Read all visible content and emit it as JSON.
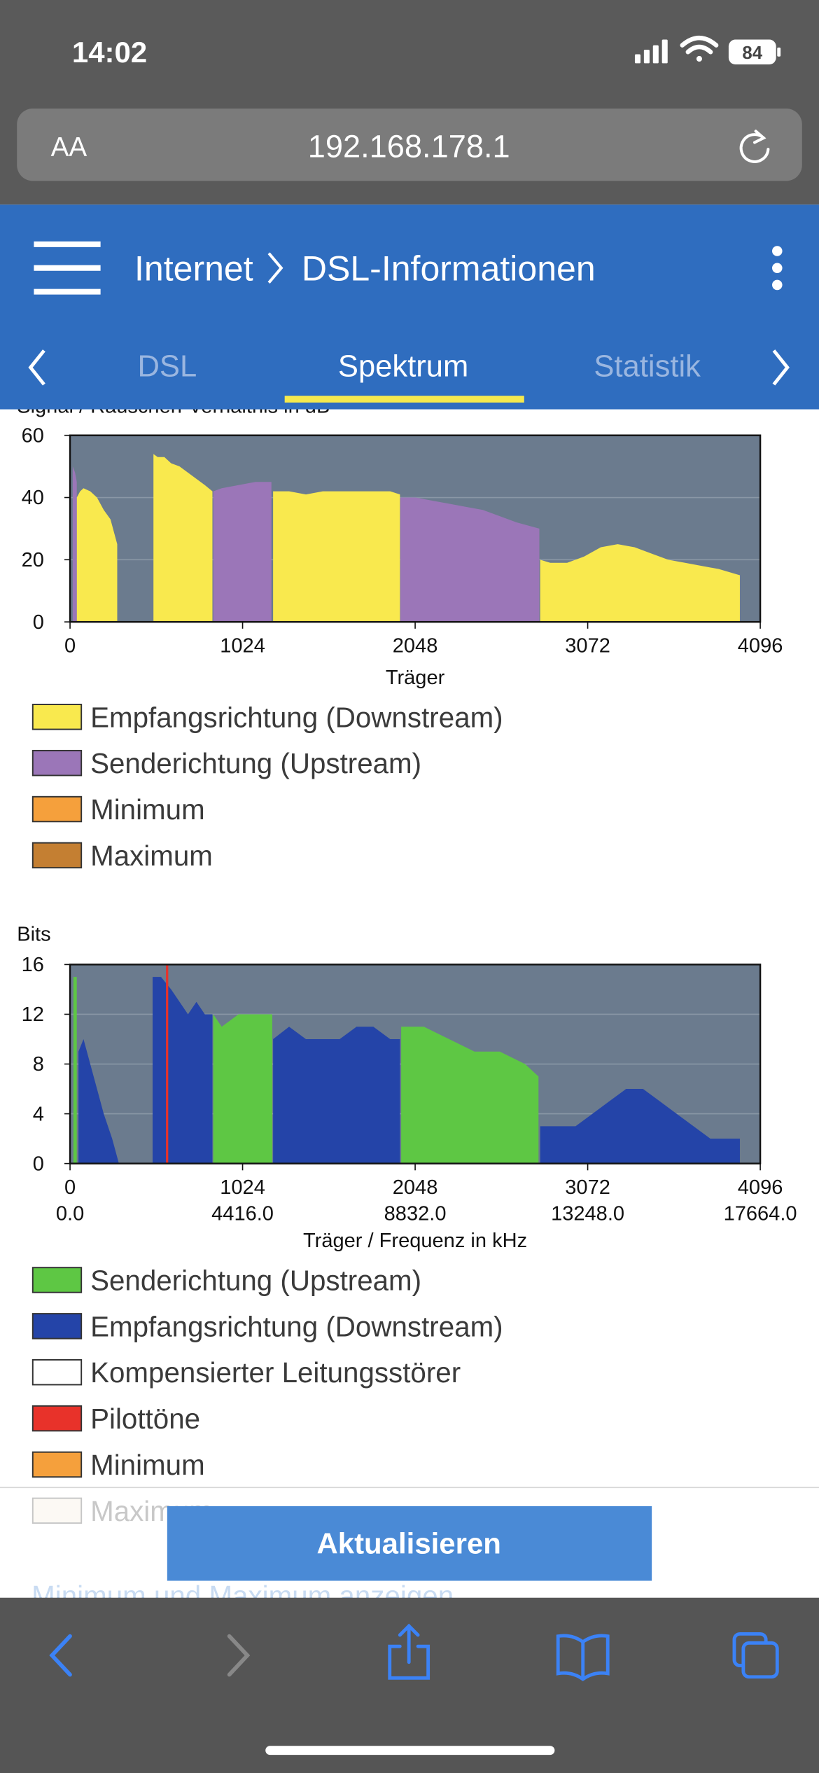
{
  "status_bar": {
    "time": "14:02",
    "battery": "84"
  },
  "browser": {
    "text_size": "AA",
    "url": "192.168.178.1"
  },
  "header": {
    "breadcrumb": [
      "Internet",
      "DSL-Informationen"
    ]
  },
  "tabs": {
    "items": [
      "DSL",
      "Spektrum",
      "Statistik"
    ],
    "active": 1
  },
  "button": "Aktualisieren",
  "link": "Minimum und Maximum anzeigen",
  "chart_data": [
    {
      "type": "area",
      "y_label": "Signal / Rauschen-Verhältnis in dB",
      "x_label": "Träger",
      "xlim": [
        0,
        4096
      ],
      "xticks": [
        0,
        1024,
        2048,
        3072,
        4096
      ],
      "ylim": [
        0,
        60
      ],
      "yticks": [
        0,
        20,
        40,
        60
      ],
      "grid": true,
      "series": [
        {
          "name": "Empfangsrichtung (Downstream)",
          "color": "#f9e94e",
          "x": [
            40,
            60,
            80,
            120,
            160,
            200,
            240,
            280,
            null,
            495,
            520,
            560,
            600,
            650,
            700,
            750,
            800,
            845,
            null,
            1205,
            1300,
            1400,
            1500,
            1600,
            1700,
            1800,
            1900,
            1958,
            null,
            2790,
            2850,
            2950,
            3050,
            3150,
            3250,
            3350,
            3450,
            3550,
            3650,
            3750,
            3850,
            3975
          ],
          "values": [
            40,
            42,
            43,
            42,
            40,
            36,
            33,
            25,
            null,
            54,
            53,
            53,
            51,
            50,
            48,
            46,
            44,
            42,
            null,
            42,
            42,
            41,
            42,
            42,
            42,
            42,
            42,
            41,
            null,
            20,
            19,
            19,
            21,
            24,
            25,
            24,
            22,
            20,
            19,
            18,
            17,
            15
          ]
        },
        {
          "name": "Senderichtung (Upstream)",
          "color": "#9b76b8",
          "x": [
            16,
            30,
            40,
            null,
            850,
            900,
            1000,
            1100,
            1195,
            null,
            1960,
            2050,
            2150,
            2250,
            2350,
            2450,
            2550,
            2650,
            2785
          ],
          "values": [
            50,
            48,
            45,
            null,
            42,
            43,
            44,
            45,
            45,
            null,
            40,
            40,
            39,
            38,
            37,
            36,
            34,
            32,
            30
          ]
        },
        {
          "name": "Minimum",
          "color": "#f5a03c",
          "x": [],
          "values": []
        },
        {
          "name": "Maximum",
          "color": "#c47f32",
          "x": [],
          "values": []
        }
      ]
    },
    {
      "type": "area",
      "y_label": "Bits",
      "x_label": "Träger / Frequenz in kHz",
      "xlim": [
        0,
        4096
      ],
      "xticks": [
        0,
        1024,
        2048,
        3072,
        4096
      ],
      "x2lim": [
        0,
        17664
      ],
      "x2ticks": [
        {
          "value": 0,
          "label": "0.0"
        },
        {
          "value": 4416,
          "label": "4416.0"
        },
        {
          "value": 8832,
          "label": "8832.0"
        },
        {
          "value": 13248,
          "label": "13248.0"
        },
        {
          "value": 17664,
          "label": "17664.0"
        }
      ],
      "ylim": [
        0,
        16
      ],
      "yticks": [
        0,
        4,
        8,
        12,
        16
      ],
      "grid": true,
      "series": [
        {
          "name": "Senderichtung (Upstream)",
          "color": "#5ec744",
          "x": [
            20,
            40,
            null,
            850,
            900,
            1000,
            1100,
            1200,
            null,
            1965,
            2100,
            2250,
            2400,
            2550,
            2700,
            2780
          ],
          "values": [
            15,
            15,
            null,
            12,
            11,
            12,
            12,
            12,
            null,
            11,
            11,
            10,
            9,
            9,
            8,
            7
          ]
        },
        {
          "name": "Empfangsrichtung (Downstream)",
          "color": "#2444a8",
          "x": [
            50,
            80,
            120,
            160,
            200,
            250,
            290,
            null,
            490,
            540,
            600,
            650,
            700,
            750,
            800,
            845,
            null,
            1205,
            1300,
            1400,
            1500,
            1600,
            1700,
            1800,
            1900,
            1958,
            null,
            2790,
            2900,
            3000,
            3100,
            3200,
            3300,
            3400,
            3500,
            3600,
            3700,
            3800,
            3975
          ],
          "values": [
            9,
            10,
            8,
            6,
            4,
            2,
            0,
            null,
            15,
            15,
            14,
            13,
            12,
            13,
            12,
            12,
            null,
            10,
            11,
            10,
            10,
            10,
            11,
            11,
            10,
            10,
            null,
            3,
            3,
            3,
            4,
            5,
            6,
            6,
            5,
            4,
            3,
            2,
            2
          ]
        },
        {
          "name": "Kompensierter Leitungsstörer",
          "color": "#ffffff",
          "x": [],
          "values": []
        },
        {
          "name": "Pilottöne",
          "color": "#e8322a",
          "x": [
            576
          ],
          "values": [
            16
          ]
        },
        {
          "name": "Minimum",
          "color": "#f5a03c",
          "x": [],
          "values": []
        },
        {
          "name": "Maximum",
          "color": "#f3e8d8",
          "x": [],
          "values": []
        }
      ]
    }
  ]
}
